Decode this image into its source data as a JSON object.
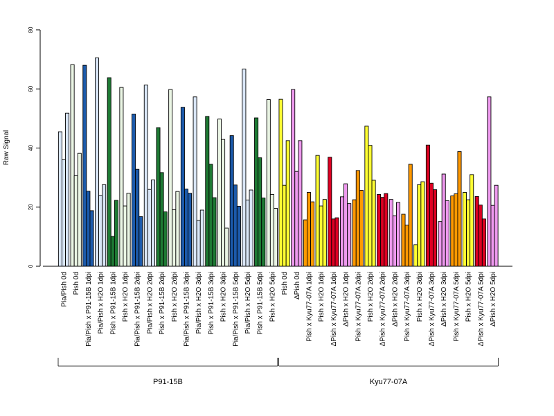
{
  "chart_data": {
    "type": "bar",
    "ylabel": "Raw Signal",
    "ylim": [
      0,
      80
    ],
    "yticks": [
      0,
      20,
      40,
      60,
      80
    ],
    "bars_per_category": 3,
    "categories": [
      "Pia/Pish 0d",
      "Pish 0d",
      "Pia/Pish x P91-15B 1dpi",
      "Pia/Pish x H2O 1dpi",
      "Pish x P91-15B 1dpi",
      "Pish x H2O 1dpi",
      "Pia/Pish x P91-15B 2dpi",
      "Pia/Pish x H2O 2dpi",
      "Pish x P91-15B 2dpi",
      "Pish x H2O 2dpi",
      "Pia/Pish x P91-15B 3dpi",
      "Pia/Pish x H2O 3dpi",
      "Pish x P91-15B 3dpi",
      "Pish x H2O 3dpi",
      "Pia/Pish x P91-15B 5dpi",
      "Pia/Pish x H2O 5dpi",
      "Pish x P91-15B 5dpi",
      "Pish x H2O 5dpi",
      "Pish 0d",
      "ΔPish 0d",
      "Pish x Kyu77-07A 1dpi",
      "Pish x H2O 1dpi",
      "ΔPish x Kyu77-07A 1dpi",
      "ΔPish x H2O 1dpi",
      "Pish x Kyu77-07A 2dpi",
      "Pish x H2O 2dpi",
      "ΔPish x Kyu77-07A 2dpi",
      "ΔPish x H2O 2dpi",
      "Pish x Kyu77-07A 3dpi",
      "Pish x H2O 3dpi",
      "ΔPish x Kyu77-07A 3dpi",
      "ΔPish x H2O 3dpi",
      "Pish x Kyu77-07A 5dpi",
      "Pish x H2O 5dpi",
      "ΔPish x Kyu77-07A 5dpi",
      "ΔPish x H2O 5dpi"
    ],
    "values": [
      [
        45.5,
        36,
        51.8
      ],
      [
        68.2,
        30.6,
        38.2
      ],
      [
        68,
        25.4,
        18.8
      ],
      [
        70.5,
        24,
        27.6
      ],
      [
        63.8,
        10.1,
        22.3
      ],
      [
        60.5,
        20.4,
        24.7
      ],
      [
        51.5,
        32.8,
        16.8
      ],
      [
        61.3,
        26,
        29.2
      ],
      [
        46.9,
        31.7,
        18.4
      ],
      [
        59.8,
        19.1,
        25.3
      ],
      [
        53.8,
        26.1,
        24.7
      ],
      [
        57.3,
        15.5,
        19
      ],
      [
        50.7,
        34.5,
        23.2
      ],
      [
        49.8,
        42.9,
        12.9
      ],
      [
        44.2,
        27.5,
        20.3
      ],
      [
        66.7,
        22.4,
        25.8
      ],
      [
        50.2,
        36.7,
        23.1
      ],
      [
        56.4,
        24.3,
        19.6
      ],
      [
        56.5,
        27.4,
        42.5
      ],
      [
        59.8,
        32.1,
        42.5
      ],
      [
        15.7,
        25,
        21.8
      ],
      [
        37.5,
        20.4,
        22.6
      ],
      [
        36.9,
        16,
        16.4
      ],
      [
        23.5,
        27.9,
        21.2
      ],
      [
        22.5,
        32.4,
        25.7
      ],
      [
        47.4,
        40.9,
        29.1
      ],
      [
        24.3,
        23.3,
        24.6
      ],
      [
        22.6,
        17.1,
        21.6
      ],
      [
        17.6,
        13.9,
        34.5
      ],
      [
        7.3,
        27.6,
        28.6
      ],
      [
        41,
        28.1,
        25.9
      ],
      [
        15.1,
        31.2,
        22.2
      ],
      [
        23.8,
        24.5,
        38.8
      ],
      [
        25,
        22.5,
        31
      ],
      [
        23.6,
        20.7,
        16
      ],
      [
        57.3,
        20.6,
        27.4
      ]
    ],
    "colors": [
      "#d9e6f7",
      "#eaf5e4",
      "#1c5aab",
      "#d9e6f7",
      "#1e7a34",
      "#eaf5e4",
      "#1c5aab",
      "#d9e6f7",
      "#1e7a34",
      "#eaf5e4",
      "#1c5aab",
      "#d9e6f7",
      "#1e7a34",
      "#eaf5e4",
      "#1c5aab",
      "#d9e6f7",
      "#1e7a34",
      "#eaf5e4",
      "#ffff33",
      "#ee99ee",
      "#ff9900",
      "#ffff33",
      "#dd0022",
      "#ee99ee",
      "#ff9900",
      "#ffff33",
      "#dd0022",
      "#ee99ee",
      "#ff9900",
      "#ffff33",
      "#dd0022",
      "#ee99ee",
      "#ff9900",
      "#ffff33",
      "#dd0022",
      "#ee99ee"
    ],
    "groups": [
      {
        "label": "P91-15B",
        "first": 0,
        "last": 17
      },
      {
        "label": "Kyu77-07A",
        "first": 18,
        "last": 35
      }
    ],
    "grid": false,
    "legend": "none"
  }
}
